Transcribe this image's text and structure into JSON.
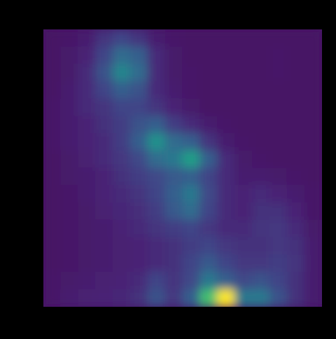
{
  "chart_data": {
    "type": "heatmap",
    "tick_labels": false,
    "zlim": [
      0,
      1
    ],
    "cells": [
      [
        0.05,
        0.06,
        0.08,
        0.15,
        0.2,
        0.15,
        0.08,
        0.06,
        0.05,
        0.05,
        0.05,
        0.05,
        0.05,
        0.05,
        0.05,
        0.05
      ],
      [
        0.05,
        0.07,
        0.1,
        0.2,
        0.35,
        0.3,
        0.12,
        0.07,
        0.05,
        0.05,
        0.05,
        0.05,
        0.05,
        0.06,
        0.05,
        0.05
      ],
      [
        0.05,
        0.07,
        0.12,
        0.25,
        0.45,
        0.35,
        0.12,
        0.07,
        0.06,
        0.05,
        0.05,
        0.05,
        0.05,
        0.06,
        0.05,
        0.05
      ],
      [
        0.05,
        0.08,
        0.12,
        0.2,
        0.3,
        0.25,
        0.12,
        0.08,
        0.06,
        0.05,
        0.05,
        0.05,
        0.05,
        0.05,
        0.05,
        0.05
      ],
      [
        0.06,
        0.08,
        0.12,
        0.15,
        0.2,
        0.2,
        0.15,
        0.1,
        0.07,
        0.05,
        0.05,
        0.05,
        0.05,
        0.05,
        0.05,
        0.05
      ],
      [
        0.06,
        0.08,
        0.1,
        0.14,
        0.18,
        0.25,
        0.3,
        0.18,
        0.12,
        0.08,
        0.06,
        0.05,
        0.05,
        0.05,
        0.05,
        0.05
      ],
      [
        0.06,
        0.08,
        0.1,
        0.12,
        0.18,
        0.3,
        0.5,
        0.35,
        0.3,
        0.15,
        0.08,
        0.06,
        0.05,
        0.05,
        0.05,
        0.05
      ],
      [
        0.05,
        0.07,
        0.09,
        0.12,
        0.16,
        0.22,
        0.35,
        0.4,
        0.55,
        0.3,
        0.12,
        0.07,
        0.06,
        0.05,
        0.05,
        0.05
      ],
      [
        0.05,
        0.07,
        0.08,
        0.1,
        0.14,
        0.18,
        0.22,
        0.28,
        0.3,
        0.2,
        0.12,
        0.08,
        0.08,
        0.07,
        0.06,
        0.05
      ],
      [
        0.05,
        0.06,
        0.08,
        0.1,
        0.12,
        0.15,
        0.2,
        0.3,
        0.4,
        0.22,
        0.12,
        0.1,
        0.12,
        0.1,
        0.08,
        0.06
      ],
      [
        0.05,
        0.06,
        0.07,
        0.09,
        0.11,
        0.13,
        0.18,
        0.28,
        0.35,
        0.2,
        0.12,
        0.1,
        0.14,
        0.14,
        0.1,
        0.06
      ],
      [
        0.05,
        0.06,
        0.07,
        0.08,
        0.1,
        0.12,
        0.15,
        0.18,
        0.2,
        0.16,
        0.12,
        0.12,
        0.15,
        0.16,
        0.12,
        0.07
      ],
      [
        0.05,
        0.06,
        0.07,
        0.08,
        0.09,
        0.1,
        0.12,
        0.14,
        0.18,
        0.2,
        0.16,
        0.14,
        0.14,
        0.16,
        0.14,
        0.08
      ],
      [
        0.05,
        0.06,
        0.07,
        0.08,
        0.09,
        0.1,
        0.12,
        0.14,
        0.2,
        0.28,
        0.2,
        0.16,
        0.16,
        0.18,
        0.15,
        0.08
      ],
      [
        0.06,
        0.07,
        0.08,
        0.09,
        0.1,
        0.12,
        0.2,
        0.15,
        0.22,
        0.4,
        0.3,
        0.22,
        0.25,
        0.2,
        0.14,
        0.08
      ],
      [
        0.06,
        0.08,
        0.09,
        0.1,
        0.11,
        0.14,
        0.25,
        0.16,
        0.3,
        0.7,
        1.0,
        0.4,
        0.4,
        0.25,
        0.14,
        0.08
      ]
    ]
  }
}
